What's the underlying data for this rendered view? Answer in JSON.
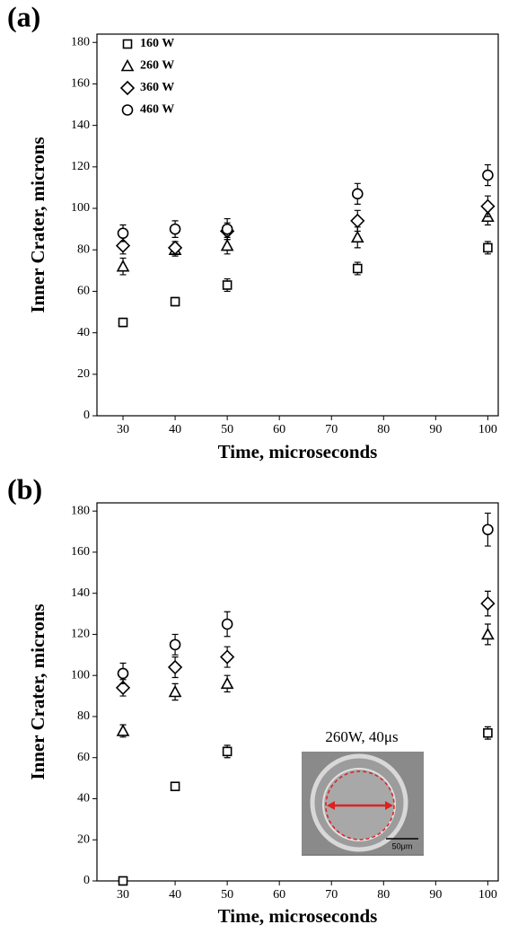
{
  "chart_data": [
    {
      "type": "scatter",
      "panel_label": "(a)",
      "x_label": "Time, microseconds",
      "y_label": "Inner Crater, microns",
      "x": [
        30,
        40,
        50,
        75,
        100
      ],
      "xlim": [
        25,
        102
      ],
      "xticks": [
        30,
        40,
        50,
        60,
        70,
        80,
        90,
        100
      ],
      "ylim": [
        0,
        184
      ],
      "yticks": [
        0,
        20,
        40,
        60,
        80,
        100,
        120,
        140,
        160,
        180
      ],
      "legend": "upper left",
      "series": [
        {
          "name": "160 W",
          "marker": "square",
          "color": "#000000",
          "values": [
            45,
            55,
            63,
            71,
            81
          ],
          "errors": [
            2,
            2,
            3,
            3,
            3
          ]
        },
        {
          "name": "260 W",
          "marker": "triangle",
          "color": "#000000",
          "values": [
            72,
            80,
            82,
            86,
            96
          ],
          "errors": [
            4,
            3,
            4,
            5,
            4
          ]
        },
        {
          "name": "360 W",
          "marker": "diamond",
          "color": "#000000",
          "values": [
            82,
            81,
            89,
            94,
            101
          ],
          "errors": [
            4,
            3,
            4,
            5,
            5
          ]
        },
        {
          "name": "460 W",
          "marker": "circle",
          "color": "#000000",
          "values": [
            88,
            90,
            90,
            107,
            116
          ],
          "errors": [
            4,
            4,
            5,
            5,
            5
          ]
        }
      ]
    },
    {
      "type": "scatter",
      "panel_label": "(b)",
      "x_label": "Time, microseconds",
      "y_label": "Inner Crater, microns",
      "x": [
        30,
        40,
        50,
        100
      ],
      "xlim": [
        25,
        102
      ],
      "xticks": [
        30,
        40,
        50,
        60,
        70,
        80,
        90,
        100
      ],
      "ylim": [
        0,
        184
      ],
      "yticks": [
        0,
        20,
        40,
        60,
        80,
        100,
        120,
        140,
        160,
        180
      ],
      "series": [
        {
          "marker": "square",
          "color": "#000000",
          "values": [
            0,
            46,
            63,
            72
          ],
          "errors": [
            2,
            2,
            3,
            3
          ]
        },
        {
          "marker": "triangle",
          "color": "#000000",
          "values": [
            73,
            92,
            96,
            120
          ],
          "errors": [
            3,
            4,
            4,
            5
          ]
        },
        {
          "marker": "diamond",
          "color": "#000000",
          "values": [
            94,
            104,
            109,
            135
          ],
          "errors": [
            4,
            5,
            5,
            6
          ]
        },
        {
          "marker": "circle",
          "color": "#000000",
          "values": [
            101,
            115,
            125,
            171
          ],
          "errors": [
            5,
            5,
            6,
            8
          ]
        }
      ],
      "inset": {
        "title": "260W, 40μs",
        "scale_label": "50μm"
      }
    }
  ]
}
